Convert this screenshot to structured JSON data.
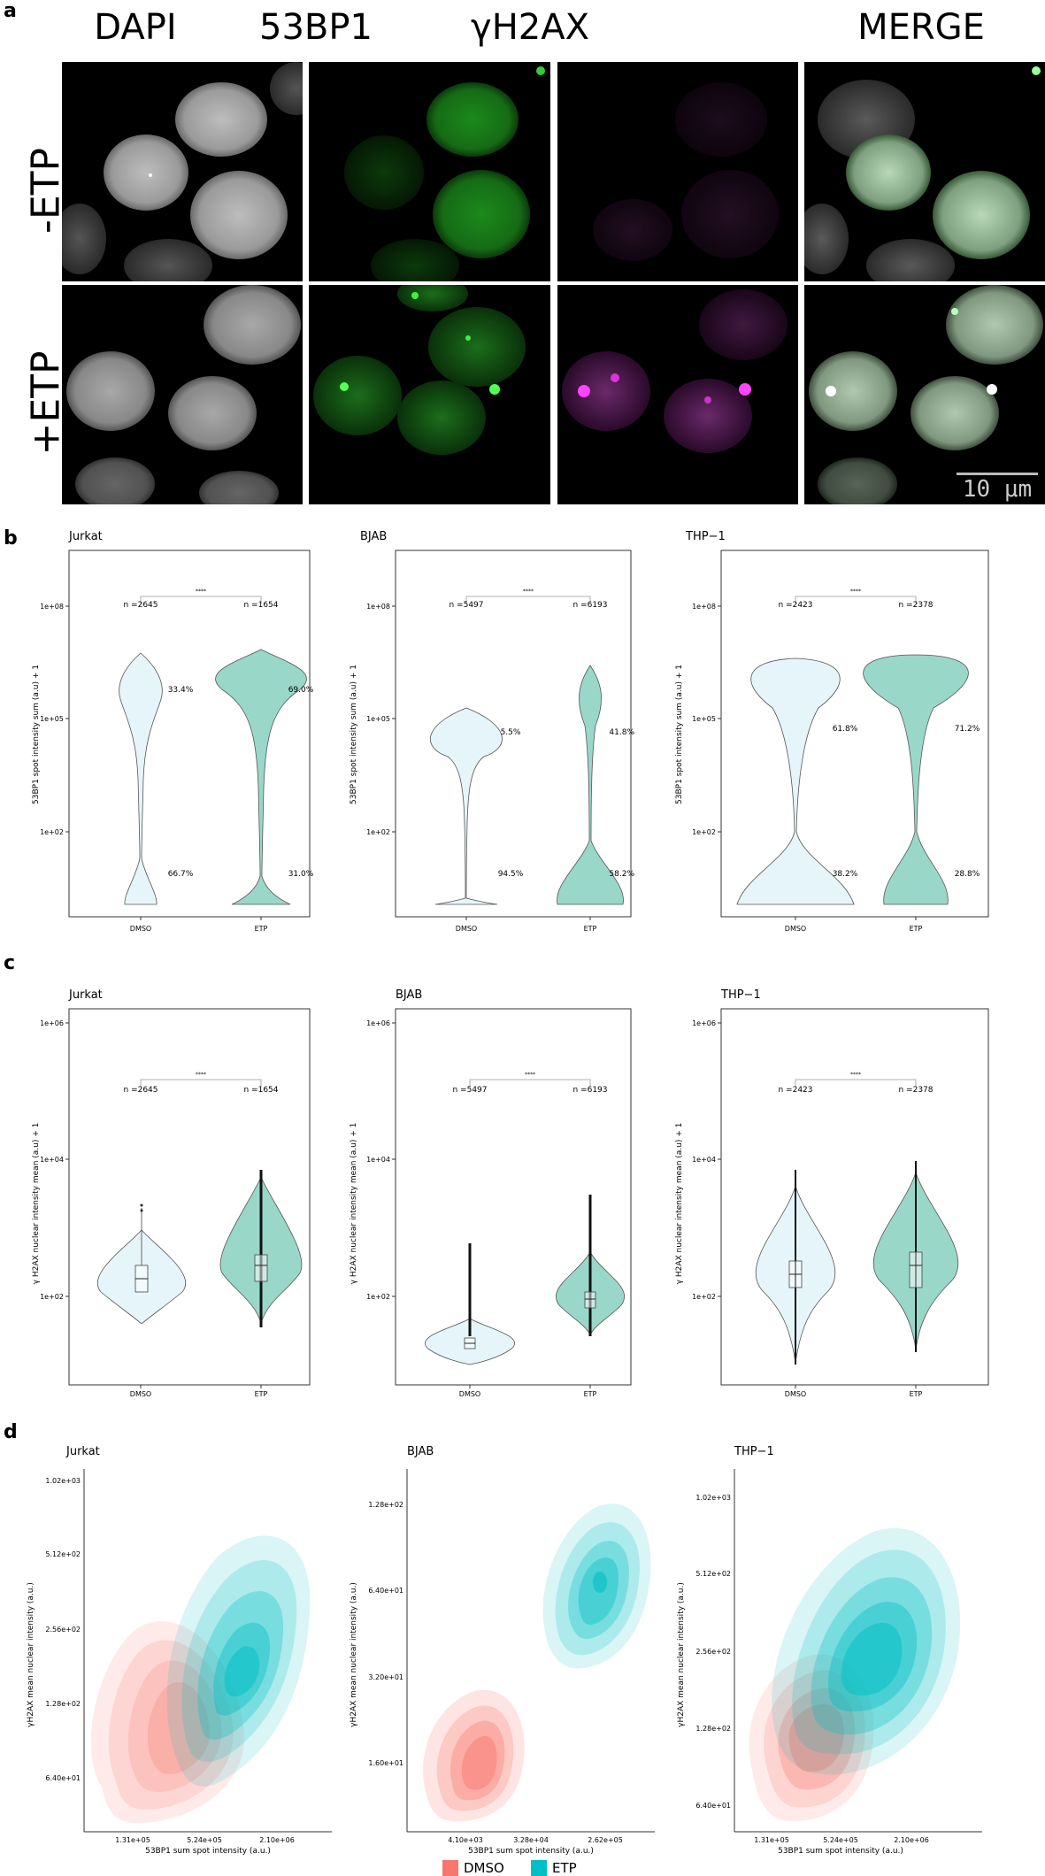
{
  "panel_a": {
    "letter": "a",
    "columns": [
      "DAPI",
      "53BP1",
      "γH2AX",
      "MERGE"
    ],
    "rows": [
      "-ETP",
      "+ETP"
    ],
    "scalebar": "10 μm"
  },
  "panel_b": {
    "letter": "b",
    "ylabel": "53BP1 spot intensity sum (a.u) + 1",
    "yticks": [
      "1e+02",
      "1e+05",
      "1e+08"
    ],
    "xticks": [
      "DMSO",
      "ETP"
    ],
    "sig": [
      "****",
      "****",
      "****"
    ],
    "panels": [
      {
        "title": "Jurkat",
        "n_dmso": "n =2645",
        "n_etp": "n =1654",
        "dmso_hi": "33.4%",
        "dmso_lo": "66.7%",
        "etp_hi": "69.0%",
        "etp_lo": "31.0%"
      },
      {
        "title": "BJAB",
        "n_dmso": "n =5497",
        "n_etp": "n =6193",
        "dmso_hi": "5.5%",
        "dmso_lo": "94.5%",
        "etp_hi": "41.8%",
        "etp_lo": "58.2%"
      },
      {
        "title": "THP−1",
        "n_dmso": "n =2423",
        "n_etp": "n =2378",
        "dmso_hi": "61.8%",
        "dmso_lo": "38.2%",
        "etp_hi": "71.2%",
        "etp_lo": "28.8%"
      }
    ]
  },
  "panel_c": {
    "letter": "c",
    "ylabel": "γ H2AX nuclear intensity mean (a.u) + 1",
    "yticks": [
      "1e+02",
      "1e+04",
      "1e+06"
    ],
    "xticks": [
      "DMSO",
      "ETP"
    ],
    "sig": [
      "****",
      "****",
      "****"
    ],
    "panels": [
      {
        "title": "Jurkat",
        "n_dmso": "n =2645",
        "n_etp": "n =1654"
      },
      {
        "title": "BJAB",
        "n_dmso": "n =5497",
        "n_etp": "n =6193"
      },
      {
        "title": "THP−1",
        "n_dmso": "n =2423",
        "n_etp": "n =2378"
      }
    ]
  },
  "panel_d": {
    "letter": "d",
    "ylabel": "γH2AX mean nuclear intensity (a.u.)",
    "xlabel": "53BP1 sum spot intensity (a.u.)",
    "legend": [
      "DMSO",
      "ETP"
    ],
    "colors": {
      "dmso": "#F8766D",
      "etp": "#00BFC4"
    },
    "panels": [
      {
        "title": "Jurkat",
        "yticks": [
          "6.40e+01",
          "1.28e+02",
          "2.56e+02",
          "5.12e+02",
          "1.02e+03"
        ],
        "xticks": [
          "1.31e+05",
          "5.24e+05",
          "2.10e+06"
        ]
      },
      {
        "title": "BJAB",
        "yticks": [
          "1.60e+01",
          "3.20e+01",
          "6.40e+01",
          "1.28e+02"
        ],
        "xticks": [
          "4.10e+03",
          "3.28e+04",
          "2.62e+05"
        ]
      },
      {
        "title": "THP−1",
        "yticks": [
          "6.40e+01",
          "1.28e+02",
          "2.56e+02",
          "5.12e+02",
          "1.02e+03"
        ],
        "xticks": [
          "1.31e+05",
          "5.24e+05",
          "2.10e+06"
        ]
      }
    ]
  },
  "chart_data": [
    {
      "type": "violin",
      "title": "Jurkat",
      "ylabel": "53BP1 spot intensity sum (a.u) + 1",
      "scale": "log10",
      "categories": [
        "DMSO",
        "ETP"
      ],
      "n": [
        2645,
        1654
      ],
      "percent_high": [
        33.4,
        69.0
      ],
      "percent_low": [
        66.7,
        31.0
      ]
    },
    {
      "type": "violin",
      "title": "BJAB",
      "ylabel": "53BP1 spot intensity sum (a.u) + 1",
      "scale": "log10",
      "categories": [
        "DMSO",
        "ETP"
      ],
      "n": [
        5497,
        6193
      ],
      "percent_high": [
        5.5,
        41.8
      ],
      "percent_low": [
        94.5,
        58.2
      ]
    },
    {
      "type": "violin",
      "title": "THP−1",
      "ylabel": "53BP1 spot intensity sum (a.u) + 1",
      "scale": "log10",
      "categories": [
        "DMSO",
        "ETP"
      ],
      "n": [
        2423,
        2378
      ],
      "percent_high": [
        61.8,
        71.2
      ],
      "percent_low": [
        38.2,
        28.8
      ]
    },
    {
      "type": "violin",
      "title": "Jurkat",
      "ylabel": "γ H2AX nuclear intensity mean (a.u) + 1",
      "scale": "log10",
      "categories": [
        "DMSO",
        "ETP"
      ],
      "n": [
        2645,
        1654
      ],
      "median": [
        150,
        290
      ]
    },
    {
      "type": "violin",
      "title": "BJAB",
      "ylabel": "γ H2AX nuclear intensity mean (a.u) + 1",
      "scale": "log10",
      "categories": [
        "DMSO",
        "ETP"
      ],
      "n": [
        5497,
        6193
      ],
      "median": [
        23,
        80
      ]
    },
    {
      "type": "violin",
      "title": "THP−1",
      "ylabel": "γ H2AX nuclear intensity mean (a.u) + 1",
      "scale": "log10",
      "categories": [
        "DMSO",
        "ETP"
      ],
      "n": [
        2423,
        2378
      ],
      "median": [
        200,
        300
      ]
    },
    {
      "type": "density2d",
      "title": "Jurkat",
      "series": [
        "DMSO",
        "ETP"
      ],
      "xlabel": "53BP1 sum spot intensity (a.u.)",
      "ylabel": "γH2AX mean nuclear intensity (a.u.)"
    },
    {
      "type": "density2d",
      "title": "BJAB",
      "series": [
        "DMSO",
        "ETP"
      ],
      "xlabel": "53BP1 sum spot intensity (a.u.)",
      "ylabel": "γH2AX mean nuclear intensity (a.u.)"
    },
    {
      "type": "density2d",
      "title": "THP−1",
      "series": [
        "DMSO",
        "ETP"
      ],
      "xlabel": "53BP1 sum spot intensity (a.u.)",
      "ylabel": "γH2AX mean nuclear intensity (a.u.)"
    }
  ]
}
